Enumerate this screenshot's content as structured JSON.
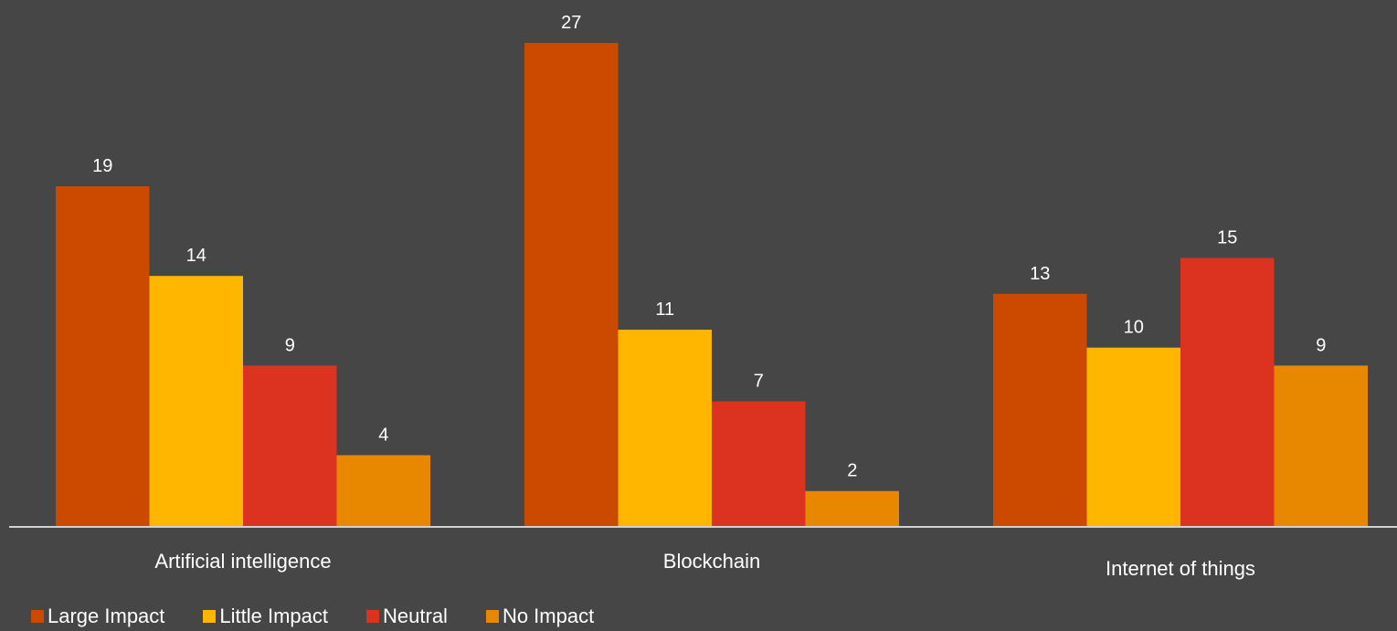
{
  "chart_data": {
    "type": "bar",
    "categories": [
      "Artificial intelligence",
      "Blockchain",
      "Internet of things"
    ],
    "series": [
      {
        "name": "Large Impact",
        "values": [
          19,
          27,
          13
        ],
        "color": "#CC4A00"
      },
      {
        "name": "Little Impact",
        "values": [
          14,
          11,
          10
        ],
        "color": "#FFB600"
      },
      {
        "name": "Neutral",
        "values": [
          9,
          7,
          15
        ],
        "color": "#DB3320"
      },
      {
        "name": "No Impact",
        "values": [
          4,
          2,
          9
        ],
        "color": "#E88800"
      }
    ],
    "ylim": [
      0,
      30
    ],
    "grid": false,
    "legend_position": "bottom-left",
    "background": "#464646"
  }
}
